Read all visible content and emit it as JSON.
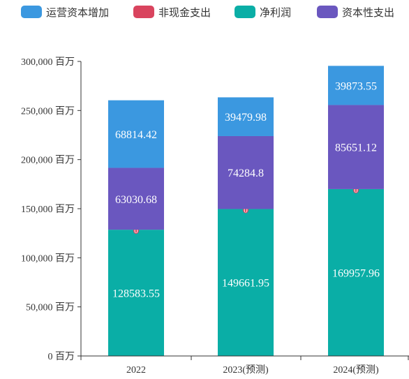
{
  "chart_data": {
    "type": "bar",
    "stacked": true,
    "categories": [
      "2022",
      "2023(预测)",
      "2024(预测)"
    ],
    "series": [
      {
        "name": "净利润",
        "values": [
          128583.55,
          149661.95,
          169957.96
        ],
        "color": "#0aaea6"
      },
      {
        "name": "非现金支出",
        "values": [
          0,
          0,
          0
        ],
        "color": "#d9445e"
      },
      {
        "name": "资本性支出",
        "values": [
          63030.68,
          74284.8,
          85651.12
        ],
        "color": "#6a57bf"
      },
      {
        "name": "运营资本增加",
        "values": [
          68814.42,
          39479.98,
          39873.55
        ],
        "color": "#3b98e0"
      }
    ],
    "legend_order": [
      "运营资本增加",
      "非现金支出",
      "净利润",
      "资本性支出"
    ],
    "legend_position": "top",
    "y_axis": {
      "min": 0,
      "max": 300000,
      "step": 50000,
      "tick_labels": [
        "0 百万",
        "50,000 百万",
        "100,000 百万",
        "150,000 百万",
        "200,000 百万",
        "250,000 百万",
        "300,000 百万"
      ]
    },
    "grid": false
  }
}
